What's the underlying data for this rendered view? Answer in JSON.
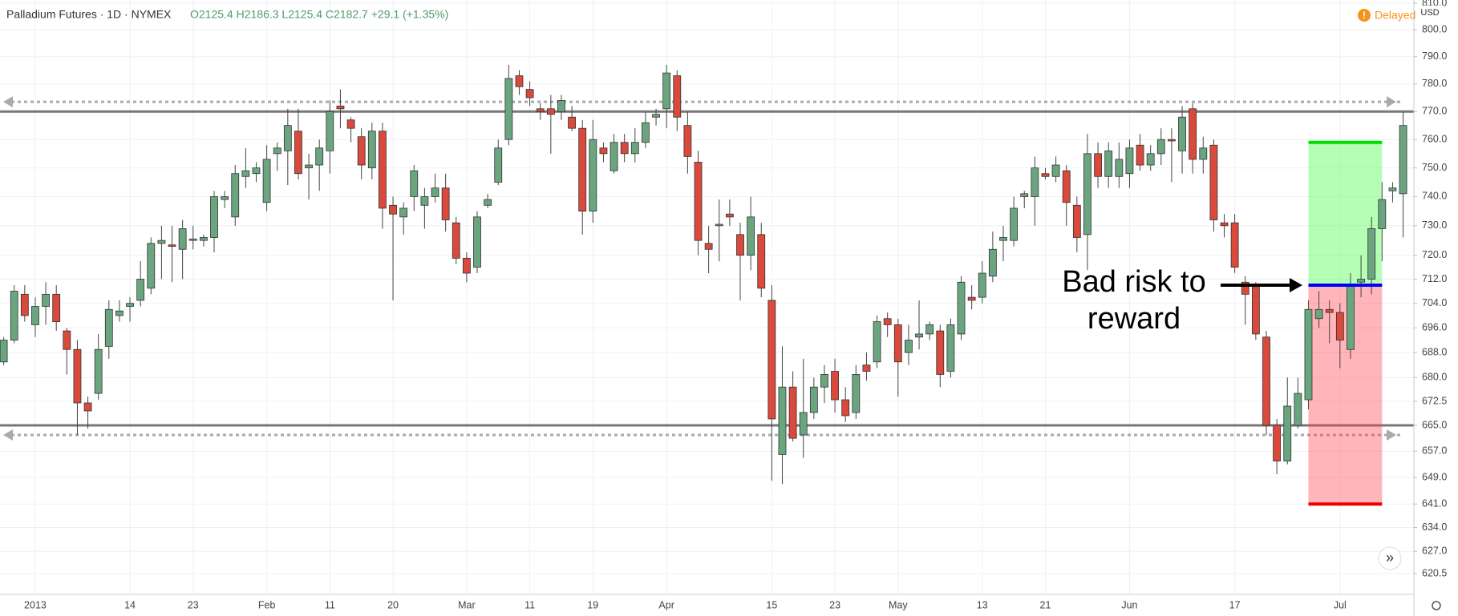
{
  "chart_data": {
    "type": "candlestick",
    "legend": {
      "symbol": "Palladium Futures · 1D · NYMEX",
      "values": "O2125.4 H2186.3 L2125.4 C2182.7 +29.1 (+1.35%)"
    },
    "status": "Delayed",
    "currency": "USD",
    "annotation": [
      "Bad risk to",
      "reward"
    ],
    "open": [
      685,
      692,
      707,
      697,
      703,
      707,
      695,
      689,
      672,
      675,
      690,
      700,
      703,
      705,
      709,
      724,
      723.5,
      722,
      725,
      725,
      726,
      739,
      733,
      747,
      748,
      738,
      755,
      756,
      763,
      750,
      751,
      756,
      772,
      767,
      761,
      750,
      763,
      737,
      733,
      740,
      737,
      740,
      743,
      731,
      719,
      716,
      737,
      745,
      760,
      783,
      778,
      771,
      771,
      770,
      768,
      764,
      735,
      757,
      749,
      759,
      755,
      759,
      768,
      771,
      783,
      765,
      752,
      724,
      730,
      734,
      727,
      720,
      727,
      705,
      656,
      677,
      662,
      669,
      677,
      682,
      673,
      669,
      684,
      685,
      699,
      697,
      688,
      693,
      694,
      695,
      682,
      694,
      706,
      706,
      713,
      725,
      725,
      740,
      740,
      748,
      747,
      749,
      737,
      727,
      755,
      747,
      747,
      748,
      758,
      751,
      755,
      760,
      756,
      771,
      753,
      758,
      731,
      731,
      711,
      710,
      693,
      665,
      654,
      665,
      673,
      699,
      702,
      701,
      689,
      711,
      712,
      729,
      742,
      741
    ],
    "high": [
      693,
      710,
      710,
      706,
      711,
      710,
      696,
      692,
      674,
      694,
      705,
      705,
      706,
      718,
      726,
      730,
      730,
      732,
      730,
      727,
      742,
      742,
      751,
      757,
      752,
      758,
      759,
      771,
      771,
      755,
      760,
      774,
      778,
      768,
      764,
      766,
      766,
      740,
      738,
      751,
      743,
      748,
      748,
      733,
      721,
      735,
      741,
      760,
      787,
      785,
      781,
      773,
      776,
      776,
      772,
      767,
      767,
      759,
      762,
      762,
      764,
      770,
      771,
      787,
      785,
      770,
      756,
      730,
      739,
      739,
      731,
      740,
      731,
      710,
      690,
      682,
      686,
      680,
      684,
      686,
      677,
      684,
      688,
      700,
      701,
      699,
      697,
      705,
      698,
      697,
      699,
      713,
      710,
      718,
      728,
      730,
      740,
      742,
      754,
      750,
      754,
      751,
      740,
      762,
      759,
      759,
      759,
      760,
      762,
      758,
      764,
      764,
      772,
      773,
      761,
      760,
      734,
      734,
      713,
      711,
      695,
      667,
      680,
      680,
      705,
      708,
      705,
      704,
      714,
      720,
      733,
      745,
      745,
      770
    ],
    "low": [
      684,
      691,
      698,
      693,
      697,
      695,
      681,
      662,
      664,
      673,
      686,
      698,
      698,
      703,
      707,
      712,
      711,
      712,
      722,
      723,
      721,
      736,
      730,
      743,
      745,
      735,
      749,
      744,
      746,
      739,
      742,
      748,
      764,
      759,
      746,
      746,
      729,
      705,
      727,
      735,
      729,
      738,
      728,
      717,
      711,
      714,
      736,
      744,
      758,
      776,
      772,
      767,
      755,
      767,
      763,
      727,
      731,
      752,
      748,
      752,
      752,
      757,
      765,
      764,
      763,
      748,
      720,
      714,
      718,
      730,
      705,
      715,
      706,
      648,
      647,
      660,
      655,
      667,
      672,
      669,
      666,
      667,
      679,
      683,
      693,
      674,
      684,
      689,
      692,
      677,
      680,
      692,
      702,
      704,
      711,
      718,
      723,
      736,
      730,
      746,
      745,
      730,
      721,
      715,
      743,
      743,
      743,
      743,
      749,
      749,
      751,
      745,
      748,
      748,
      748,
      728,
      726,
      714,
      697,
      692,
      662,
      650,
      653,
      664,
      670,
      696,
      691,
      683,
      686,
      706,
      707,
      718,
      738,
      726
    ],
    "close": [
      692,
      708,
      700,
      703,
      707,
      698,
      689,
      672,
      669.5,
      689,
      702,
      701.5,
      704,
      712,
      724,
      725,
      723,
      729,
      725.5,
      726,
      740,
      740,
      748,
      749,
      750,
      753,
      757,
      765,
      748,
      751,
      757,
      770,
      771,
      764,
      751,
      763,
      736,
      734,
      736,
      749,
      740,
      743,
      732,
      719,
      714,
      733,
      739,
      757,
      782,
      779,
      775,
      770,
      769,
      774,
      764,
      735,
      760,
      755,
      759,
      755,
      759,
      766,
      769,
      784,
      768,
      754,
      725,
      722,
      730.5,
      733,
      720,
      733,
      709,
      667,
      677,
      661,
      669,
      677,
      681,
      673,
      668,
      681,
      682,
      698,
      697,
      685,
      692,
      694,
      697,
      681,
      697,
      711,
      705,
      714,
      722,
      726,
      736,
      741,
      750,
      747,
      751,
      738,
      726,
      755,
      747,
      756,
      753,
      757,
      751,
      755,
      760,
      759.5,
      768,
      753,
      757,
      732,
      730,
      716,
      707,
      694,
      665,
      654,
      671,
      675,
      702,
      702,
      701,
      692,
      710,
      712,
      729,
      739,
      743,
      765
    ],
    "up_color": "#6aa57f",
    "down_color": "#d9493c",
    "log_scale": true,
    "grid": true,
    "ylim": [
      614.5,
      811.2
    ],
    "yticks": [
      {
        "value": 810,
        "label": "810.0"
      },
      {
        "value": 800,
        "label": "800.0"
      },
      {
        "value": 790,
        "label": "790.0"
      },
      {
        "value": 780,
        "label": "780.0"
      },
      {
        "value": 770,
        "label": "770.0"
      },
      {
        "value": 760,
        "label": "760.0"
      },
      {
        "value": 750,
        "label": "750.0"
      },
      {
        "value": 740,
        "label": "740.0"
      },
      {
        "value": 730,
        "label": "730.0"
      },
      {
        "value": 720,
        "label": "720.0"
      },
      {
        "value": 712,
        "label": "712.0"
      },
      {
        "value": 704,
        "label": "704.0"
      },
      {
        "value": 696,
        "label": "696.0"
      },
      {
        "value": 688,
        "label": "688.0"
      },
      {
        "value": 680,
        "label": "680.0"
      },
      {
        "value": 672.5,
        "label": "672.5"
      },
      {
        "value": 665,
        "label": "665.0"
      },
      {
        "value": 657,
        "label": "657.0"
      },
      {
        "value": 649,
        "label": "649.0"
      },
      {
        "value": 641,
        "label": "641.0"
      },
      {
        "value": 634,
        "label": "634.0"
      },
      {
        "value": 627,
        "label": "627.0"
      },
      {
        "value": 620.5,
        "label": "620.5"
      }
    ],
    "xticks": [
      {
        "value": 3,
        "label": "2013"
      },
      {
        "value": 12,
        "label": "14"
      },
      {
        "value": 18,
        "label": "23"
      },
      {
        "value": 25,
        "label": "Feb"
      },
      {
        "value": 31,
        "label": "11"
      },
      {
        "value": 37,
        "label": "20"
      },
      {
        "value": 44,
        "label": "Mar"
      },
      {
        "value": 50,
        "label": "11"
      },
      {
        "value": 56,
        "label": "19"
      },
      {
        "value": 63,
        "label": "Apr"
      },
      {
        "value": 73,
        "label": "15"
      },
      {
        "value": 79,
        "label": "23"
      },
      {
        "value": 85,
        "label": "May"
      },
      {
        "value": 93,
        "label": "13"
      },
      {
        "value": 99,
        "label": "21"
      },
      {
        "value": 107,
        "label": "Jun"
      },
      {
        "value": 117,
        "label": "17"
      },
      {
        "value": 127,
        "label": "Jul"
      }
    ],
    "levels": [
      770,
      665
    ],
    "dotted_levels": [
      773.5,
      662
    ],
    "position": {
      "entry": 710,
      "target": 759,
      "stop": 641,
      "start": 124,
      "end": 131
    }
  }
}
